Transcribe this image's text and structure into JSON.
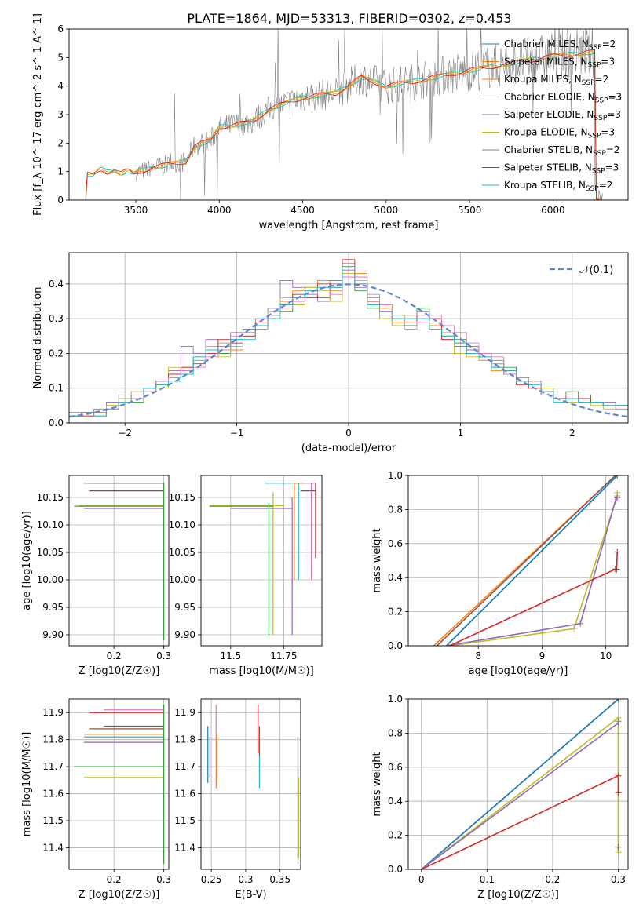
{
  "figure_title": "PLATE=1864, MJD=53313, FIBERID=0302, z=0.453",
  "colors": {
    "series": [
      "#1f77b4",
      "#ff7f0e",
      "#2ca02c",
      "#d62728",
      "#9467bd",
      "#8c564b",
      "#e377c2",
      "#7f7f7f",
      "#bcbd22",
      "#17becf"
    ],
    "spectrum": "#7f7f7f",
    "gaussian": "#5b84d6",
    "grid": "#b0b0b0"
  },
  "chart_data": [
    {
      "id": "spectrum",
      "type": "line",
      "xlabel": "wavelength [Angstrom, rest frame]",
      "ylabel": "Flux [f_λ 10^-17 erg cm^-2 s^-1 A^-1]",
      "xlim": [
        3100,
        6450
      ],
      "ylim": [
        0,
        6
      ],
      "xticks": [
        3500,
        4000,
        4500,
        5000,
        5500,
        6000
      ],
      "yticks": [
        0,
        1,
        2,
        3,
        4,
        5,
        6
      ],
      "grid": false,
      "legend_position": "top-right",
      "legend": [
        {
          "label": "Chabrier MILES, N_SSP=2",
          "color": "#1f77b4"
        },
        {
          "label": "Salpeter MILES, N_SSP=3",
          "color": "#ff7f0e"
        },
        {
          "label": "Kroupa MILES, N_SSP=2",
          "color": "#ff7f0e"
        },
        {
          "label": "Chabrier ELODIE, N_SSP=3",
          "color": "#2ca02c"
        },
        {
          "label": "Salpeter ELODIE, N_SSP=3",
          "color": "#9467bd"
        },
        {
          "label": "Kroupa ELODIE, N_SSP=3",
          "color": "#bcbd22"
        },
        {
          "label": "Chabrier STELIB, N_SSP=2",
          "color": "#7f7f7f"
        },
        {
          "label": "Salpeter STELIB, N_SSP=3",
          "color": "#d62728"
        },
        {
          "label": "Kroupa STELIB, N_SSP=2",
          "color": "#17becf"
        }
      ],
      "model_trend": {
        "x": [
          3200,
          3210,
          3300,
          3500,
          3600,
          3800,
          3850,
          3950,
          4000,
          4200,
          4300,
          4500,
          4700,
          4850,
          5000,
          5200,
          5500,
          6000,
          6250
        ],
        "y": [
          0,
          0.85,
          1.05,
          0.95,
          1.15,
          1.35,
          1.9,
          2.1,
          2.55,
          2.75,
          3.2,
          3.6,
          3.75,
          4.3,
          4.0,
          4.2,
          4.55,
          5.05,
          5.2
        ]
      }
    },
    {
      "id": "residuals",
      "type": "step",
      "xlabel": "(data-model)/error",
      "ylabel": "Normed distribution",
      "xlim": [
        -2.5,
        2.5
      ],
      "ylim": [
        0,
        0.49
      ],
      "xticks": [
        -2,
        -1,
        0,
        1,
        2
      ],
      "yticks": [
        0.0,
        0.1,
        0.2,
        0.3,
        0.4
      ],
      "grid": true,
      "legend_position": "top-right",
      "legend": [
        {
          "label": "𝒩(0,1)",
          "style": "dashed",
          "color": "#5b84d6"
        }
      ],
      "series": [
        {
          "color": "#2ca02c",
          "values": [
            0.02,
            0.03,
            0.02,
            0.05,
            0.07,
            0.06,
            0.1,
            0.11,
            0.13,
            0.15,
            0.18,
            0.22,
            0.2,
            0.24,
            0.25,
            0.27,
            0.3,
            0.32,
            0.36,
            0.38,
            0.36,
            0.41,
            0.45,
            0.38,
            0.33,
            0.3,
            0.31,
            0.28,
            0.33,
            0.3,
            0.25,
            0.24,
            0.22,
            0.2,
            0.17,
            0.16,
            0.13,
            0.12,
            0.08,
            0.07,
            0.09,
            0.08,
            0.06,
            0.05,
            0.05
          ]
        },
        {
          "color": "#ff7f0e",
          "values": [
            0.02,
            0.02,
            0.03,
            0.05,
            0.06,
            0.09,
            0.1,
            0.12,
            0.14,
            0.16,
            0.19,
            0.21,
            0.23,
            0.21,
            0.26,
            0.28,
            0.31,
            0.35,
            0.38,
            0.39,
            0.41,
            0.38,
            0.46,
            0.43,
            0.36,
            0.33,
            0.29,
            0.31,
            0.3,
            0.28,
            0.25,
            0.22,
            0.2,
            0.19,
            0.15,
            0.14,
            0.12,
            0.1,
            0.09,
            0.08,
            0.07,
            0.06,
            0.06,
            0.05,
            0.05
          ]
        },
        {
          "color": "#9467bd",
          "values": [
            0.03,
            0.03,
            0.04,
            0.06,
            0.08,
            0.07,
            0.1,
            0.12,
            0.15,
            0.22,
            0.2,
            0.24,
            0.22,
            0.26,
            0.27,
            0.3,
            0.33,
            0.41,
            0.39,
            0.37,
            0.35,
            0.4,
            0.44,
            0.39,
            0.34,
            0.31,
            0.28,
            0.3,
            0.32,
            0.27,
            0.24,
            0.22,
            0.21,
            0.18,
            0.18,
            0.14,
            0.13,
            0.1,
            0.08,
            0.08,
            0.07,
            0.07,
            0.06,
            0.06,
            0.05
          ]
        },
        {
          "color": "#bcbd22",
          "values": [
            0.02,
            0.03,
            0.03,
            0.05,
            0.07,
            0.08,
            0.09,
            0.1,
            0.16,
            0.14,
            0.18,
            0.22,
            0.19,
            0.22,
            0.26,
            0.29,
            0.32,
            0.36,
            0.34,
            0.39,
            0.38,
            0.35,
            0.43,
            0.41,
            0.35,
            0.3,
            0.28,
            0.31,
            0.29,
            0.27,
            0.26,
            0.2,
            0.19,
            0.18,
            0.17,
            0.15,
            0.12,
            0.11,
            0.1,
            0.08,
            0.06,
            0.07,
            0.05,
            0.04,
            0.05
          ]
        },
        {
          "color": "#d62728",
          "values": [
            0.02,
            0.02,
            0.03,
            0.04,
            0.06,
            0.08,
            0.1,
            0.11,
            0.14,
            0.16,
            0.17,
            0.2,
            0.24,
            0.23,
            0.25,
            0.29,
            0.31,
            0.34,
            0.37,
            0.36,
            0.4,
            0.39,
            0.47,
            0.4,
            0.35,
            0.32,
            0.3,
            0.29,
            0.31,
            0.3,
            0.24,
            0.23,
            0.2,
            0.2,
            0.16,
            0.15,
            0.11,
            0.1,
            0.09,
            0.07,
            0.08,
            0.07,
            0.06,
            0.05,
            0.05
          ]
        },
        {
          "color": "#e377c2",
          "values": [
            0.02,
            0.03,
            0.03,
            0.04,
            0.06,
            0.07,
            0.09,
            0.12,
            0.13,
            0.15,
            0.16,
            0.19,
            0.21,
            0.25,
            0.26,
            0.27,
            0.3,
            0.33,
            0.35,
            0.37,
            0.39,
            0.37,
            0.42,
            0.42,
            0.37,
            0.34,
            0.3,
            0.27,
            0.29,
            0.31,
            0.28,
            0.26,
            0.23,
            0.2,
            0.19,
            0.14,
            0.13,
            0.12,
            0.09,
            0.08,
            0.07,
            0.06,
            0.06,
            0.05,
            0.04
          ]
        },
        {
          "color": "#17becf",
          "values": [
            0.02,
            0.03,
            0.02,
            0.04,
            0.06,
            0.08,
            0.1,
            0.11,
            0.12,
            0.14,
            0.19,
            0.21,
            0.22,
            0.24,
            0.24,
            0.28,
            0.3,
            0.34,
            0.36,
            0.38,
            0.39,
            0.39,
            0.45,
            0.4,
            0.34,
            0.32,
            0.3,
            0.3,
            0.3,
            0.27,
            0.25,
            0.23,
            0.2,
            0.19,
            0.16,
            0.15,
            0.12,
            0.11,
            0.09,
            0.06,
            0.07,
            0.06,
            0.06,
            0.05,
            0.05
          ]
        }
      ],
      "bin_start": -2.5,
      "bin_width": 0.1111
    },
    {
      "id": "age_vs_Z",
      "type": "errorbar",
      "xlabel": "Z [log10(Z/Z☉)]",
      "ylabel": "age  [log10(age/yr)]",
      "xlim": [
        0.11,
        0.31
      ],
      "ylim": [
        9.88,
        10.19
      ],
      "xticks": [
        0.2,
        0.3
      ],
      "yticks": [
        9.9,
        9.95,
        10.0,
        10.05,
        10.1,
        10.15
      ],
      "grid": true,
      "points": [
        {
          "x": 0.3,
          "y": 10.176,
          "xlo": 0.15,
          "color": "#17becf"
        },
        {
          "x": 0.3,
          "y": 10.176,
          "xlo": 0.14,
          "color": "#7f7f7f"
        },
        {
          "x": 0.3,
          "y": 10.162,
          "xlo": 0.15,
          "color": "#d62728"
        },
        {
          "x": 0.3,
          "y": 10.135,
          "xlo": 0.13,
          "color": "#bcbd22"
        },
        {
          "x": 0.3,
          "y": 10.134,
          "xlo": 0.12,
          "color": "#2ca02c"
        },
        {
          "x": 0.3,
          "y": 10.13,
          "xlo": 0.14,
          "color": "#9467bd"
        },
        {
          "x": 0.3,
          "y": 10.176,
          "ylo": 9.89,
          "color": "#2ca02c"
        }
      ]
    },
    {
      "id": "age_vs_mass",
      "type": "errorbar",
      "xlabel": "mass [log10(M/M☉)]",
      "ylabel": "",
      "xlim": [
        11.36,
        11.93
      ],
      "ylim": [
        9.88,
        10.19
      ],
      "xticks": [
        11.5,
        11.75
      ],
      "yticks": [
        9.9,
        9.95,
        10.0,
        10.05,
        10.1,
        10.15
      ],
      "grid": true,
      "points": [
        {
          "x": 11.9,
          "y": 10.162,
          "xlo": 11.83,
          "xhi": 11.9,
          "ylo": 10.04,
          "yhi": 10.176,
          "color": "#d62728"
        },
        {
          "x": 11.88,
          "y": 10.176,
          "xlo": 11.8,
          "xhi": 11.9,
          "ylo": 10.0,
          "yhi": 10.176,
          "color": "#e377c2"
        },
        {
          "x": 11.82,
          "y": 10.176,
          "xlo": 11.66,
          "xhi": 11.84,
          "ylo": 10.0,
          "yhi": 10.176,
          "color": "#17becf"
        },
        {
          "x": 11.8,
          "y": 10.176,
          "xlo": 11.8,
          "xhi": 11.84,
          "ylo": 10.0,
          "yhi": 10.176,
          "color": "#ff7f0e"
        },
        {
          "x": 11.79,
          "y": 10.13,
          "xlo": 11.5,
          "xhi": 11.79,
          "ylo": 9.9,
          "yhi": 10.15,
          "color": "#9467bd"
        },
        {
          "x": 11.7,
          "y": 10.135,
          "xlo": 11.4,
          "xhi": 11.75,
          "ylo": 9.9,
          "yhi": 10.16,
          "color": "#bcbd22"
        },
        {
          "x": 11.68,
          "y": 10.134,
          "xlo": 11.4,
          "xhi": 11.7,
          "ylo": 9.9,
          "yhi": 10.14,
          "color": "#2ca02c"
        }
      ]
    },
    {
      "id": "weight_vs_age",
      "type": "line",
      "xlabel": "age  [log10(age/yr)]",
      "ylabel": "mass weight",
      "xlim": [
        6.9,
        10.35
      ],
      "ylim": [
        0,
        1
      ],
      "xticks": [
        8,
        9,
        10
      ],
      "yticks": [
        0.0,
        0.2,
        0.4,
        0.6,
        0.8,
        1.0
      ],
      "grid": true,
      "series": [
        {
          "color": "#17becf",
          "x": [
            7.5,
            10.18
          ],
          "y": [
            0.0,
            1.0
          ]
        },
        {
          "color": "#1f77b4",
          "x": [
            7.5,
            10.18
          ],
          "y": [
            0.0,
            1.0
          ]
        },
        {
          "color": "#ff7f0e",
          "x": [
            7.3,
            10.15
          ],
          "y": [
            0.0,
            1.0
          ]
        },
        {
          "color": "#8c564b",
          "x": [
            7.35,
            10.15
          ],
          "y": [
            0.0,
            1.0
          ]
        },
        {
          "color": "#bcbd22",
          "x": [
            7.55,
            9.5,
            10.18,
            10.18
          ],
          "y": [
            0.0,
            0.1,
            0.88,
            0.9
          ]
        },
        {
          "color": "#9467bd",
          "x": [
            7.5,
            9.6,
            10.15,
            10.18
          ],
          "y": [
            0.0,
            0.13,
            0.85,
            0.87
          ]
        },
        {
          "color": "#d62728",
          "x": [
            7.55,
            10.15,
            10.17,
            10.18
          ],
          "y": [
            0.0,
            0.45,
            0.45,
            0.55
          ]
        }
      ]
    },
    {
      "id": "mass_vs_Z",
      "type": "errorbar",
      "xlabel": "Z [log10(Z/Z☉)]",
      "ylabel": "mass [log10(M/M☉)]",
      "xlim": [
        0.11,
        0.31
      ],
      "ylim": [
        11.32,
        11.95
      ],
      "xticks": [
        0.2,
        0.3
      ],
      "yticks": [
        11.4,
        11.5,
        11.6,
        11.7,
        11.8,
        11.9
      ],
      "grid": true,
      "points": [
        {
          "x": 0.3,
          "y": 11.91,
          "xlo": 0.18,
          "color": "#e377c2"
        },
        {
          "x": 0.3,
          "y": 11.9,
          "xlo": 0.15,
          "color": "#d62728"
        },
        {
          "x": 0.3,
          "y": 11.85,
          "xlo": 0.18,
          "color": "#1f77b4"
        },
        {
          "x": 0.3,
          "y": 11.84,
          "xlo": 0.15,
          "color": "#8c564b"
        },
        {
          "x": 0.3,
          "y": 11.82,
          "xlo": 0.14,
          "color": "#ff7f0e"
        },
        {
          "x": 0.3,
          "y": 11.81,
          "xlo": 0.14,
          "color": "#17becf"
        },
        {
          "x": 0.3,
          "y": 11.79,
          "xlo": 0.14,
          "color": "#9467bd"
        },
        {
          "x": 0.3,
          "y": 11.7,
          "xlo": 0.12,
          "color": "#2ca02c"
        },
        {
          "x": 0.3,
          "y": 11.66,
          "xlo": 0.14,
          "color": "#bcbd22"
        },
        {
          "x": 0.3,
          "y": 11.93,
          "ylo": 11.34,
          "color": "#2ca02c"
        }
      ]
    },
    {
      "id": "mass_vs_EBV",
      "type": "errorbar",
      "xlabel": "E(B-V)",
      "ylabel": "",
      "xlim": [
        0.235,
        0.38
      ],
      "ylim": [
        11.32,
        11.95
      ],
      "xticks": [
        0.25,
        0.3,
        0.35
      ],
      "yticks": [
        11.4,
        11.5,
        11.6,
        11.7,
        11.8,
        11.9
      ],
      "grid": true,
      "points": [
        {
          "x": 0.245,
          "ylo": 11.64,
          "yhi": 11.85,
          "color": "#1f77b4"
        },
        {
          "x": 0.248,
          "ylo": 11.66,
          "yhi": 11.81,
          "color": "#17becf"
        },
        {
          "x": 0.257,
          "ylo": 11.62,
          "yhi": 11.93,
          "color": "#e377c2"
        },
        {
          "x": 0.258,
          "ylo": 11.63,
          "yhi": 11.82,
          "color": "#ff7f0e"
        },
        {
          "x": 0.318,
          "ylo": 11.75,
          "yhi": 11.93,
          "color": "#d62728"
        },
        {
          "x": 0.32,
          "ylo": 11.62,
          "yhi": 11.8,
          "color": "#17becf"
        },
        {
          "x": 0.32,
          "ylo": 11.74,
          "yhi": 11.85,
          "color": "#8c564b"
        },
        {
          "x": 0.376,
          "ylo": 11.36,
          "yhi": 11.81,
          "color": "#9467bd"
        },
        {
          "x": 0.376,
          "ylo": 11.34,
          "yhi": 11.7,
          "color": "#2ca02c"
        },
        {
          "x": 0.377,
          "ylo": 11.36,
          "yhi": 11.66,
          "color": "#bcbd22"
        }
      ]
    },
    {
      "id": "weight_vs_Z",
      "type": "line",
      "xlabel": "Z [log10(Z/Z☉)]",
      "ylabel": "mass weight",
      "xlim": [
        -0.02,
        0.315
      ],
      "ylim": [
        0,
        1
      ],
      "xticks": [
        0.0,
        0.1,
        0.2,
        0.3
      ],
      "yticks": [
        0.0,
        0.2,
        0.4,
        0.6,
        0.8,
        1.0
      ],
      "grid": true,
      "series": [
        {
          "color": "#17becf",
          "x": [
            0.0,
            0.3
          ],
          "y": [
            0.0,
            1.0
          ]
        },
        {
          "color": "#1f77b4",
          "x": [
            0.0,
            0.3
          ],
          "y": [
            0.0,
            1.0
          ]
        },
        {
          "color": "#bcbd22",
          "x": [
            0.0,
            0.3,
            0.3
          ],
          "y": [
            0.0,
            0.89,
            0.1
          ]
        },
        {
          "color": "#9467bd",
          "x": [
            0.0,
            0.3,
            0.3
          ],
          "y": [
            0.0,
            0.86,
            0.87
          ]
        },
        {
          "color": "#d62728",
          "x": [
            0.0,
            0.3,
            0.3
          ],
          "y": [
            0.0,
            0.55,
            0.45
          ]
        },
        {
          "color": "#8c564b",
          "x": [
            0.3,
            0.3
          ],
          "y": [
            0.12,
            0.13
          ]
        }
      ]
    }
  ]
}
